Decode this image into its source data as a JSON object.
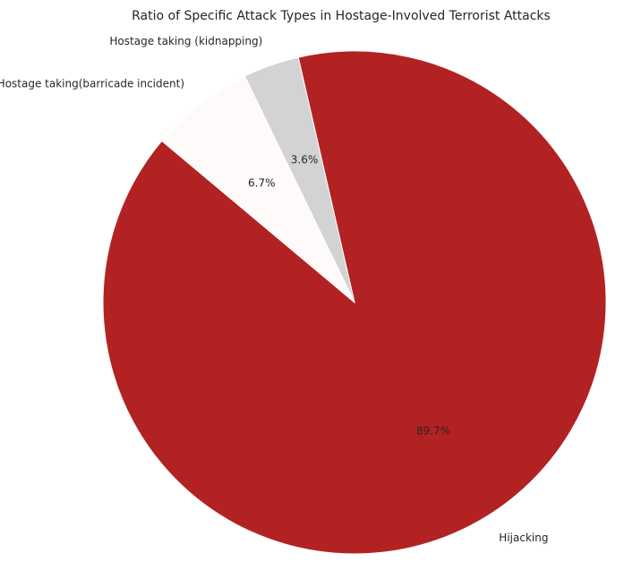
{
  "chart_data": {
    "type": "pie",
    "title": "Ratio of Specific Attack Types in Hostage-Involved Terrorist Attacks",
    "slices": [
      {
        "label": "Hijacking",
        "value": 89.7,
        "pct_label": "89.7%",
        "color": "#b22222"
      },
      {
        "label": "Hostage taking (kidnapping)",
        "value": 3.6,
        "pct_label": "3.6%",
        "color": "#d3d3d3"
      },
      {
        "label": "Hostage taking(barricade incident)",
        "value": 6.7,
        "pct_label": "6.7%",
        "color": "#fffafa"
      }
    ],
    "start_angle_deg": 140,
    "direction": "counterclockwise"
  }
}
